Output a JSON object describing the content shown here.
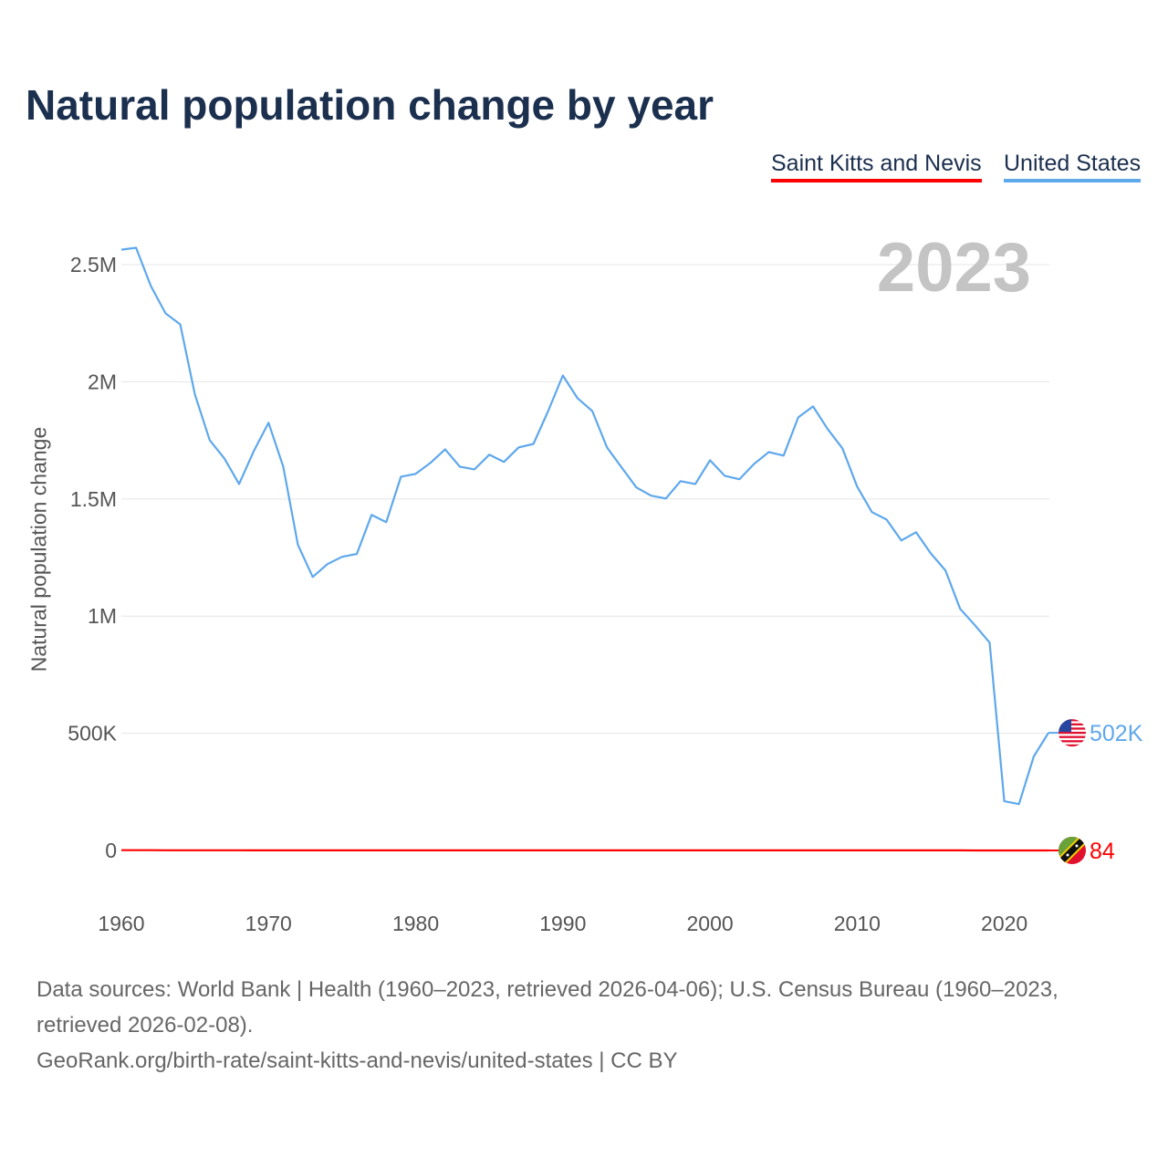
{
  "title": "Natural population change by year",
  "legend": [
    {
      "label": "Saint Kitts and Nevis",
      "color": "#ff0000"
    },
    {
      "label": "United States",
      "color": "#5ea8ec"
    }
  ],
  "year_label": "2023",
  "footer": {
    "sources": "Data sources: World Bank | Health (1960–2023, retrieved 2026-04-06); U.S. Census Bureau (1960–2023, retrieved 2026-02-08).",
    "link": "GeoRank.org/birth-rate/saint-kitts-and-nevis/united-states | CC BY"
  },
  "chart_data": {
    "type": "line",
    "title": "Natural population change by year",
    "xlabel": "",
    "ylabel": "Natural population change",
    "xlim": [
      1960,
      2023
    ],
    "ylim": [
      0,
      2500000
    ],
    "x_ticks": [
      "1960",
      "1970",
      "1980",
      "1990",
      "2000",
      "2010",
      "2020"
    ],
    "y_ticks": [
      {
        "v": 0,
        "label": "0"
      },
      {
        "v": 500000,
        "label": "500K"
      },
      {
        "v": 1000000,
        "label": "1M"
      },
      {
        "v": 1500000,
        "label": "1.5M"
      },
      {
        "v": 2000000,
        "label": "2M"
      },
      {
        "v": 2500000,
        "label": "2.5M"
      }
    ],
    "grid": true,
    "legend_position": "top-right",
    "series": [
      {
        "name": "United States",
        "color": "#5ea8ec",
        "end_label": "502K",
        "values": [
          2564000,
          2572000,
          2409000,
          2292000,
          2245000,
          1946000,
          1751000,
          1673000,
          1564000,
          1704000,
          1825000,
          1638000,
          1304000,
          1167000,
          1222000,
          1253000,
          1265000,
          1432000,
          1401000,
          1595000,
          1607000,
          1654000,
          1712000,
          1638000,
          1626000,
          1689000,
          1658000,
          1720000,
          1735000,
          1875000,
          2027000,
          1930000,
          1875000,
          1720000,
          1634000,
          1549000,
          1514000,
          1502000,
          1576000,
          1564000,
          1665000,
          1599000,
          1584000,
          1650000,
          1700000,
          1685000,
          1848000,
          1895000,
          1798000,
          1716000,
          1553000,
          1444000,
          1412000,
          1323000,
          1358000,
          1268000,
          1195000,
          1031000,
          961000,
          887000,
          210000,
          198000,
          401000,
          502000
        ]
      },
      {
        "name": "Saint Kitts and Nevis",
        "color": "#ff0000",
        "end_label": "84",
        "values": [
          1100,
          1050,
          1000,
          950,
          900,
          800,
          700,
          650,
          600,
          560,
          520,
          500,
          480,
          470,
          460,
          450,
          450,
          440,
          440,
          430,
          430,
          420,
          420,
          420,
          410,
          410,
          400,
          400,
          400,
          400,
          400,
          390,
          390,
          380,
          380,
          370,
          370,
          360,
          360,
          350,
          350,
          340,
          340,
          330,
          330,
          320,
          320,
          310,
          300,
          290,
          280,
          270,
          260,
          250,
          240,
          230,
          220,
          200,
          180,
          160,
          140,
          120,
          100,
          84
        ]
      }
    ]
  }
}
